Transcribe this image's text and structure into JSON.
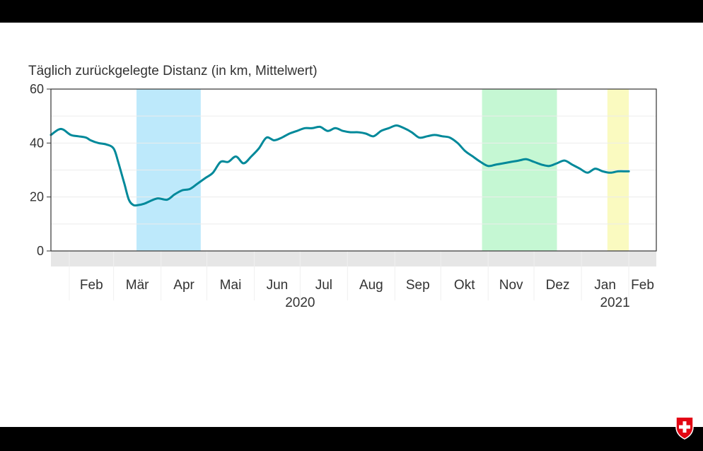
{
  "chart_data": {
    "type": "line",
    "title": "Täglich zurückgelegte Distanz (in km, Mittelwert)",
    "xlabel": "",
    "ylabel": "",
    "ylim": [
      0,
      60
    ],
    "yticks": [
      0,
      20,
      40,
      60
    ],
    "xlim": [
      "2020-01-20",
      "2021-02-19"
    ],
    "month_ticks": [
      {
        "label": "Feb",
        "date": "2020-02-01"
      },
      {
        "label": "Mär",
        "date": "2020-03-01"
      },
      {
        "label": "Apr",
        "date": "2020-04-01"
      },
      {
        "label": "Mai",
        "date": "2020-05-01"
      },
      {
        "label": "Jun",
        "date": "2020-06-01"
      },
      {
        "label": "Jul",
        "date": "2020-07-01"
      },
      {
        "label": "Aug",
        "date": "2020-08-01"
      },
      {
        "label": "Sep",
        "date": "2020-09-01"
      },
      {
        "label": "Okt",
        "date": "2020-10-01"
      },
      {
        "label": "Nov",
        "date": "2020-11-01"
      },
      {
        "label": "Dez",
        "date": "2020-12-01"
      },
      {
        "label": "Jan",
        "date": "2021-01-01"
      },
      {
        "label": "Feb",
        "date": "2021-02-01"
      }
    ],
    "year_labels": [
      {
        "label": "2020",
        "date": "2020-07-01"
      },
      {
        "label": "2021",
        "date": "2021-01-23"
      }
    ],
    "shaded_periods": [
      {
        "start": "2020-03-16",
        "end": "2020-04-27",
        "color": "#bde9fb"
      },
      {
        "start": "2020-10-28",
        "end": "2020-12-16",
        "color": "#c5f7d3"
      },
      {
        "start": "2021-01-18",
        "end": "2021-02-01",
        "color": "#fafac0"
      }
    ],
    "series": [
      {
        "color": "#00899a",
        "x": [
          "2020-01-20",
          "2020-01-25",
          "2020-01-28",
          "2020-02-02",
          "2020-02-07",
          "2020-02-12",
          "2020-02-15",
          "2020-02-20",
          "2020-02-25",
          "2020-03-01",
          "2020-03-04",
          "2020-03-08",
          "2020-03-11",
          "2020-03-14",
          "2020-03-17",
          "2020-03-21",
          "2020-03-25",
          "2020-03-30",
          "2020-04-05",
          "2020-04-10",
          "2020-04-15",
          "2020-04-20",
          "2020-04-25",
          "2020-04-30",
          "2020-05-05",
          "2020-05-10",
          "2020-05-15",
          "2020-05-20",
          "2020-05-25",
          "2020-05-30",
          "2020-06-04",
          "2020-06-09",
          "2020-06-14",
          "2020-06-19",
          "2020-06-24",
          "2020-06-29",
          "2020-07-04",
          "2020-07-09",
          "2020-07-14",
          "2020-07-19",
          "2020-07-24",
          "2020-07-29",
          "2020-08-03",
          "2020-08-08",
          "2020-08-13",
          "2020-08-18",
          "2020-08-23",
          "2020-08-28",
          "2020-09-02",
          "2020-09-07",
          "2020-09-12",
          "2020-09-17",
          "2020-09-22",
          "2020-09-27",
          "2020-10-02",
          "2020-10-07",
          "2020-10-12",
          "2020-10-17",
          "2020-10-22",
          "2020-10-27",
          "2020-11-01",
          "2020-11-06",
          "2020-11-11",
          "2020-11-16",
          "2020-11-21",
          "2020-11-26",
          "2020-12-01",
          "2020-12-06",
          "2020-12-11",
          "2020-12-16",
          "2020-12-21",
          "2020-12-26",
          "2020-12-31",
          "2021-01-05",
          "2021-01-10",
          "2021-01-15",
          "2021-01-20",
          "2021-01-25",
          "2021-01-30",
          "2021-02-01"
        ],
        "y": [
          43,
          45,
          45,
          43,
          42.5,
          42,
          41,
          40,
          39.5,
          38,
          33,
          25,
          19,
          17,
          17,
          17.5,
          18.5,
          19.5,
          19,
          21,
          22.5,
          23,
          25,
          27,
          29,
          33,
          33,
          35,
          32.5,
          35,
          38,
          42,
          41,
          42,
          43.5,
          44.5,
          45.5,
          45.5,
          46,
          44.5,
          45.5,
          44.5,
          44,
          44,
          43.5,
          42.5,
          44.5,
          45.5,
          46.5,
          45.5,
          44,
          42,
          42.5,
          43,
          42.5,
          42,
          40,
          37,
          35,
          33,
          31.5,
          32,
          32.5,
          33,
          33.5,
          34,
          33,
          32,
          31.5,
          32.5,
          33.5,
          32,
          30.5,
          29,
          30.5,
          29.5,
          29,
          29.5,
          29.5,
          29.5
        ]
      }
    ]
  }
}
